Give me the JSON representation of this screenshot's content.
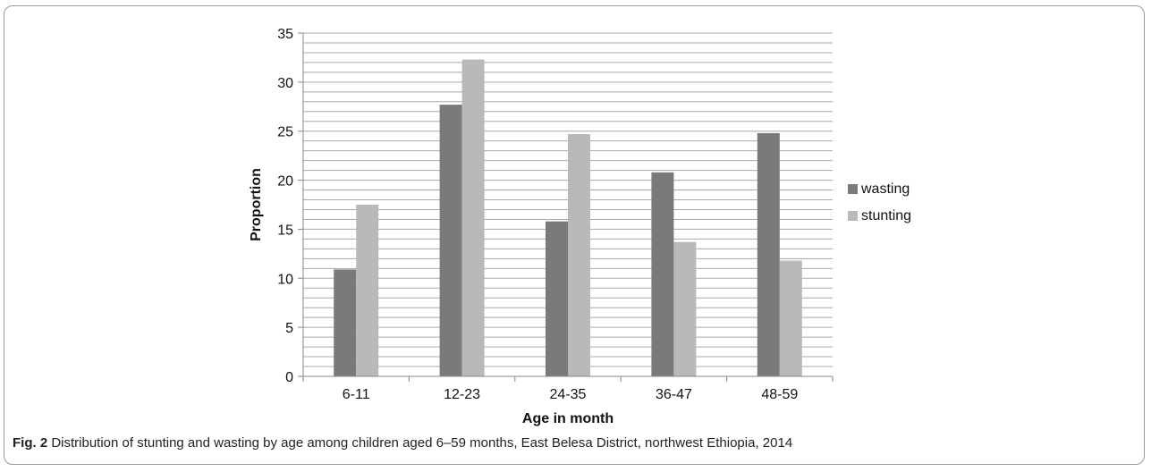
{
  "chart_data": {
    "type": "bar",
    "title": "",
    "xlabel": "Age in month",
    "ylabel": "Proportion",
    "categories": [
      "6-11",
      "12-23",
      "24-35",
      "36-47",
      "48-59"
    ],
    "series": [
      {
        "name": "wasting",
        "color": "#7a7a7c",
        "values": [
          10.9,
          27.7,
          15.8,
          20.8,
          24.8
        ]
      },
      {
        "name": "stunting",
        "color": "#b9b9bb",
        "values": [
          17.5,
          32.3,
          24.7,
          13.7,
          11.8
        ]
      }
    ],
    "ylim": [
      0,
      35
    ],
    "y_major_step": 5,
    "y_minor_step": 1,
    "yticks": [
      "0",
      "5",
      "10",
      "15",
      "20",
      "25",
      "30",
      "35"
    ],
    "grid": true,
    "legend_position": "right"
  },
  "caption": {
    "label": "Fig. 2",
    "text": " Distribution of stunting and wasting by age among children aged 6–59 months, East Belesa District, northwest Ethiopia, 2014"
  }
}
